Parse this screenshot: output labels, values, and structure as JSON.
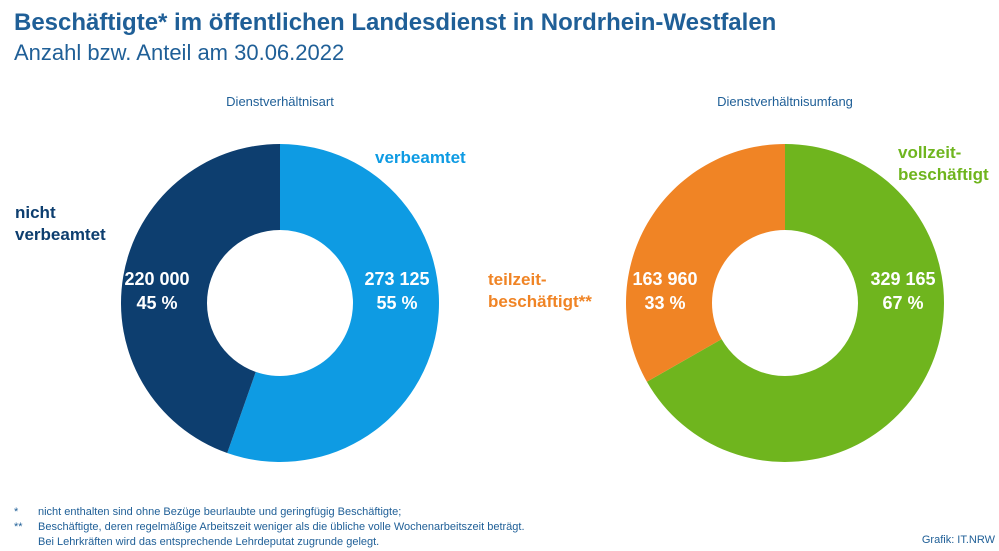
{
  "header": {
    "title": "Beschäftigte* im öffentlichen Landesdienst in Nordrhein-Westfalen",
    "subtitle": "Anzahl bzw. Anteil am 30.06.2022"
  },
  "chart_data": [
    {
      "type": "pie",
      "variant": "donut",
      "title": "Dienstverhältnisart",
      "slices": [
        {
          "label": [
            "verbeamtet"
          ],
          "value": 273125,
          "value_text": "273 125",
          "percent_text": "55 %",
          "color": "#0e9be3",
          "label_color": "#0e9be3"
        },
        {
          "label": [
            "nicht",
            "verbeamtet"
          ],
          "value": 220000,
          "value_text": "220 000",
          "percent_text": "45 %",
          "color": "#0d3e6f",
          "label_color": "#0d3e6f"
        }
      ]
    },
    {
      "type": "pie",
      "variant": "donut",
      "title": "Dienstverhältnisumfang",
      "slices": [
        {
          "label": [
            "vollzeit-",
            "beschäftigt"
          ],
          "value": 329165,
          "value_text": "329 165",
          "percent_text": "67 %",
          "color": "#6fb51e",
          "label_color": "#6fb51e"
        },
        {
          "label": [
            "teilzeit-",
            "beschäftigt**"
          ],
          "value": 163960,
          "value_text": "163 960",
          "percent_text": "33 %",
          "color": "#f08425",
          "label_color": "#f08425"
        }
      ]
    }
  ],
  "footnotes": [
    {
      "mark": "*",
      "lines": [
        "nicht enthalten sind ohne Bezüge beurlaubte und geringfügig Beschäftigte;"
      ]
    },
    {
      "mark": "**",
      "lines": [
        "Beschäftigte, deren regelmäßige Arbeitszeit weniger als die übliche volle Wochenarbeitszeit beträgt.",
        "Bei Lehrkräften wird das entsprechende Lehrdeputat zugrunde gelegt."
      ]
    }
  ],
  "source": "Grafik: IT.NRW"
}
